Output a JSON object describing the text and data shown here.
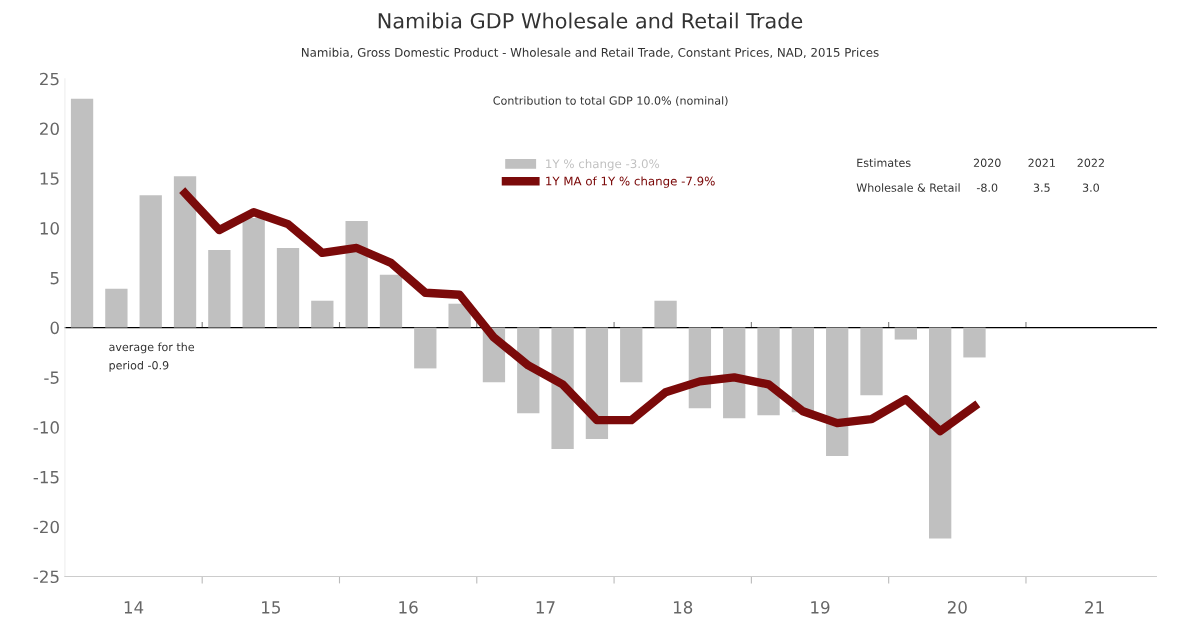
{
  "chart_data": {
    "type": "bar",
    "title": "Namibia GDP Wholesale and Retail Trade",
    "subtitle": "Namibia, Gross Domestic Product - Wholesale and Retail Trade, Constant Prices, NAD, 2015 Prices",
    "x": [
      14.125,
      14.375,
      14.625,
      14.875,
      15.125,
      15.375,
      15.625,
      15.875,
      16.125,
      16.375,
      16.625,
      16.875,
      17.125,
      17.375,
      17.625,
      17.875,
      18.125,
      18.375,
      18.625,
      18.875,
      19.125,
      19.375,
      19.625,
      19.875,
      20.125,
      20.375,
      20.625
    ],
    "series": [
      {
        "name": "1Y % change -3.0%",
        "color": "#c0c0c0",
        "values": [
          23.0,
          3.9,
          13.3,
          15.2,
          7.8,
          11.0,
          8.0,
          2.7,
          10.7,
          5.3,
          -4.1,
          2.4,
          -5.5,
          -8.6,
          -12.2,
          -11.2,
          -5.5,
          2.7,
          -8.1,
          -9.1,
          -8.8,
          -8.5,
          -12.9,
          -6.8,
          -1.2,
          -21.2,
          -3.0
        ]
      },
      {
        "name": "1Y MA of 1Y % change -7.9%",
        "type": "line",
        "color": "#7b0a0a",
        "values": [
          null,
          null,
          null,
          13.5,
          9.8,
          11.6,
          10.4,
          7.5,
          8.0,
          6.5,
          3.5,
          3.3,
          -1.0,
          -3.8,
          -5.7,
          -9.3,
          -9.3,
          -6.5,
          -5.4,
          -5.0,
          -5.7,
          -8.4,
          -9.6,
          -9.2,
          -7.2,
          -10.4,
          -7.9
        ]
      }
    ],
    "xlim": [
      14,
      21.95
    ],
    "xticks": [
      {
        "value": 14.5,
        "label": "14"
      },
      {
        "value": 15.5,
        "label": "15"
      },
      {
        "value": 16.5,
        "label": "16"
      },
      {
        "value": 17.5,
        "label": "17"
      },
      {
        "value": 18.5,
        "label": "18"
      },
      {
        "value": 19.5,
        "label": "19"
      },
      {
        "value": 20.5,
        "label": "20"
      },
      {
        "value": 21.5,
        "label": "21"
      },
      {
        "value": 15,
        "label": null
      },
      {
        "value": 16,
        "label": null
      },
      {
        "value": 17,
        "label": null
      },
      {
        "value": 18,
        "label": null
      },
      {
        "value": 19,
        "label": null
      },
      {
        "value": 20,
        "label": null
      },
      {
        "value": 21,
        "label": null
      }
    ],
    "ylim": [
      -25,
      25
    ],
    "yticks": [
      -25,
      -20,
      -15,
      -10,
      -5,
      0,
      5,
      10,
      15,
      20,
      25
    ],
    "legend": "top",
    "line_style": "solid",
    "marker": "none",
    "annotations": [
      "Contribution to total GDP 10.0% (nominal)",
      "average for the\nperiod -0.9",
      "Estimates",
      "2020",
      "2021",
      "2022",
      "Wholesale & Retail",
      "-8.0",
      "3.5",
      "3.0"
    ]
  }
}
